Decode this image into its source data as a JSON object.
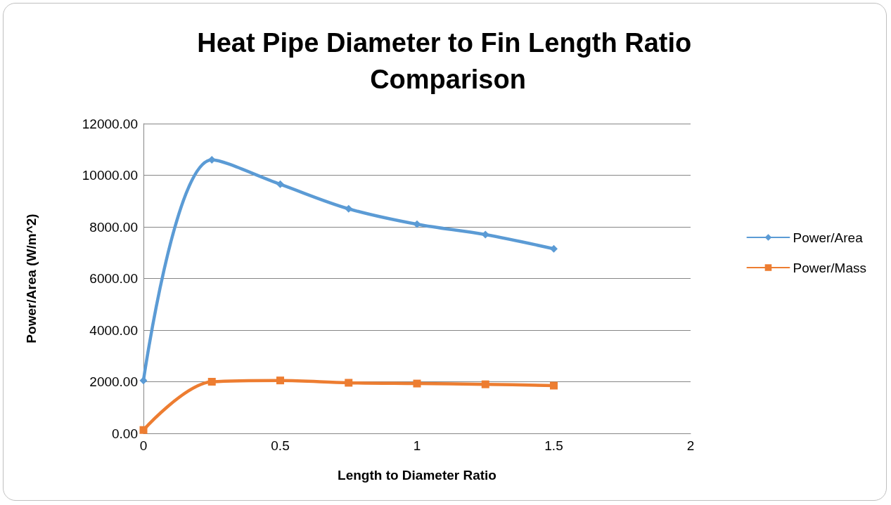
{
  "chart_data": {
    "type": "line",
    "title": "Heat Pipe Diameter to Fin Length Ratio Comparison",
    "xlabel": "Length to Diameter Ratio",
    "ylabel": "Power/Area (W/m^2)",
    "x": [
      0,
      0.25,
      0.5,
      0.75,
      1,
      1.25,
      1.5
    ],
    "series": [
      {
        "name": "Power/Area",
        "color": "#5b9bd5",
        "marker": "diamond",
        "values": [
          2050,
          10600,
          9650,
          8700,
          8100,
          7700,
          7150
        ]
      },
      {
        "name": "Power/Mass",
        "color": "#ed7d31",
        "marker": "square",
        "values": [
          130,
          2000,
          2050,
          1960,
          1930,
          1900,
          1850
        ]
      }
    ],
    "xlim": [
      0,
      2
    ],
    "xticks": [
      0,
      0.5,
      1,
      1.5,
      2
    ],
    "ylim": [
      0,
      12000
    ],
    "yticks": [
      {
        "value": 0,
        "label": "0.00"
      },
      {
        "value": 2000,
        "label": "2000.00"
      },
      {
        "value": 4000,
        "label": "4000.00"
      },
      {
        "value": 6000,
        "label": "6000.00"
      },
      {
        "value": 8000,
        "label": "8000.00"
      },
      {
        "value": 10000,
        "label": "10000.00"
      },
      {
        "value": 12000,
        "label": "12000.00"
      }
    ],
    "grid": "y",
    "legend": "right",
    "line_style": "solid"
  }
}
